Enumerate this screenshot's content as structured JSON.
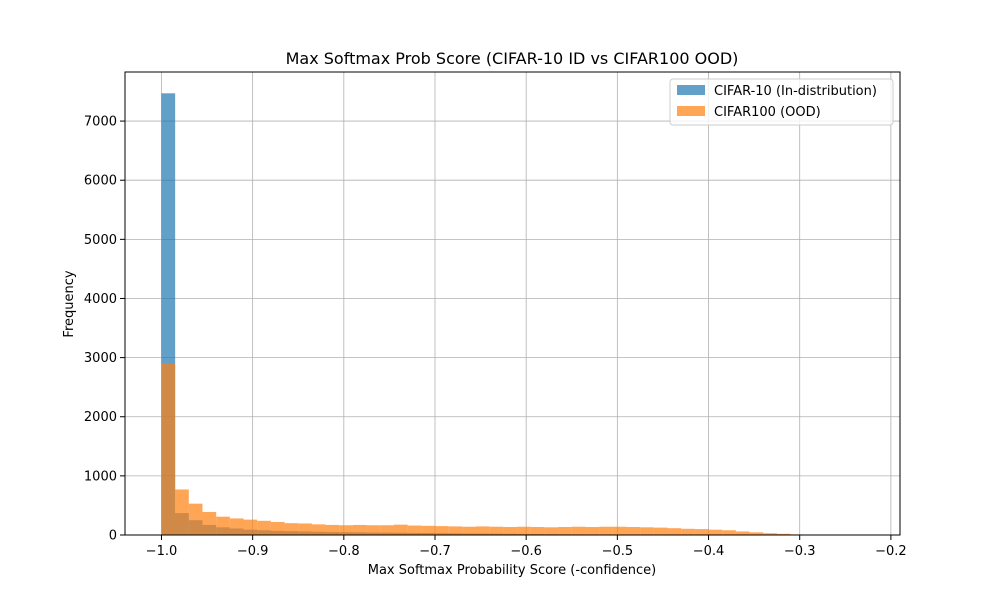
{
  "chart_data": {
    "type": "histogram",
    "title": "Max Softmax Prob Score (CIFAR-10 ID vs CIFAR100 OOD)",
    "xlabel": "Max Softmax Probability Score (-confidence)",
    "ylabel": "Frequency",
    "xlim": [
      -1.04,
      -0.19
    ],
    "ylim": [
      0,
      7830
    ],
    "xticks": [
      -1.0,
      -0.9,
      -0.8,
      -0.7,
      -0.6,
      -0.5,
      -0.4,
      -0.3,
      -0.2
    ],
    "xtick_labels": [
      "−1.0",
      "−0.9",
      "−0.8",
      "−0.7",
      "−0.6",
      "−0.5",
      "−0.4",
      "−0.3",
      "−0.2"
    ],
    "yticks": [
      0,
      1000,
      2000,
      3000,
      4000,
      5000,
      6000,
      7000
    ],
    "ytick_labels": [
      "0",
      "1000",
      "2000",
      "3000",
      "4000",
      "5000",
      "6000",
      "7000"
    ],
    "grid": true,
    "legend_position": "top-right",
    "series": [
      {
        "name": "CIFAR-10 (In-distribution)",
        "color": "#1f77b4",
        "alpha": 0.7,
        "bin_start": -1.0,
        "bin_width": 0.015,
        "values": [
          7470,
          370,
          250,
          170,
          130,
          110,
          90,
          80,
          70,
          65,
          60,
          55,
          50,
          48,
          45,
          42,
          40,
          38,
          35,
          33,
          30,
          28,
          26,
          24,
          22,
          20,
          18,
          16,
          14,
          12,
          10,
          8,
          6,
          5,
          4,
          3,
          2,
          1,
          1,
          0,
          0,
          0,
          0,
          0,
          0,
          0,
          0,
          0,
          0
        ]
      },
      {
        "name": "CIFAR100 (OOD)",
        "color": "#ff7f0e",
        "alpha": 0.7,
        "bin_start": -1.0,
        "bin_width": 0.015,
        "values": [
          2900,
          770,
          530,
          390,
          310,
          280,
          260,
          240,
          220,
          200,
          195,
          180,
          170,
          165,
          170,
          165,
          165,
          175,
          160,
          155,
          150,
          145,
          140,
          145,
          140,
          135,
          140,
          135,
          130,
          135,
          140,
          135,
          140,
          140,
          135,
          130,
          125,
          115,
          105,
          100,
          90,
          80,
          60,
          45,
          30,
          20,
          10,
          5,
          2
        ]
      }
    ]
  }
}
